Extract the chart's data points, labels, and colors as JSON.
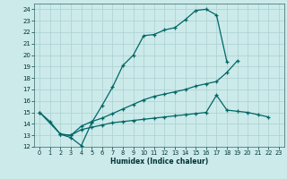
{
  "xlabel": "Humidex (Indice chaleur)",
  "bg_color": "#cceaea",
  "grid_color": "#aacfcf",
  "line_color": "#006666",
  "xlim": [
    -0.5,
    23.5
  ],
  "ylim": [
    12,
    24.5
  ],
  "yticks": [
    12,
    13,
    14,
    15,
    16,
    17,
    18,
    19,
    20,
    21,
    22,
    23,
    24
  ],
  "xticks": [
    0,
    1,
    2,
    3,
    4,
    5,
    6,
    7,
    8,
    9,
    10,
    11,
    12,
    13,
    14,
    15,
    16,
    17,
    18,
    19,
    20,
    21,
    22,
    23
  ],
  "series": [
    {
      "x": [
        0,
        1,
        2,
        3,
        4,
        5,
        6,
        7,
        8,
        9,
        10,
        11,
        12,
        13,
        14,
        15,
        16,
        17,
        18
      ],
      "y": [
        15.0,
        14.2,
        13.1,
        12.8,
        12.1,
        14.1,
        15.6,
        17.2,
        19.1,
        20.0,
        21.7,
        21.8,
        22.2,
        22.4,
        23.1,
        23.9,
        24.0,
        23.5,
        19.4
      ]
    },
    {
      "x": [
        0,
        2,
        3,
        4,
        5,
        6,
        7,
        8,
        9,
        10,
        11,
        12,
        13,
        14,
        15,
        16,
        17,
        18,
        19,
        20,
        21,
        22
      ],
      "y": [
        15.0,
        13.1,
        13.0,
        13.8,
        14.2,
        14.5,
        14.9,
        15.3,
        15.7,
        16.1,
        16.4,
        16.6,
        16.8,
        17.0,
        17.3,
        17.5,
        17.7,
        18.5,
        19.5,
        null,
        null,
        null
      ]
    },
    {
      "x": [
        2,
        3,
        4,
        5,
        6,
        7,
        8,
        9,
        10,
        11,
        12,
        13,
        14,
        15,
        16,
        17,
        18,
        19,
        20,
        21,
        22
      ],
      "y": [
        13.1,
        13.0,
        13.5,
        13.7,
        13.9,
        14.1,
        14.2,
        14.3,
        14.4,
        14.5,
        14.6,
        14.7,
        14.8,
        14.9,
        15.0,
        16.5,
        15.2,
        15.1,
        15.0,
        14.8,
        14.6
      ]
    }
  ]
}
